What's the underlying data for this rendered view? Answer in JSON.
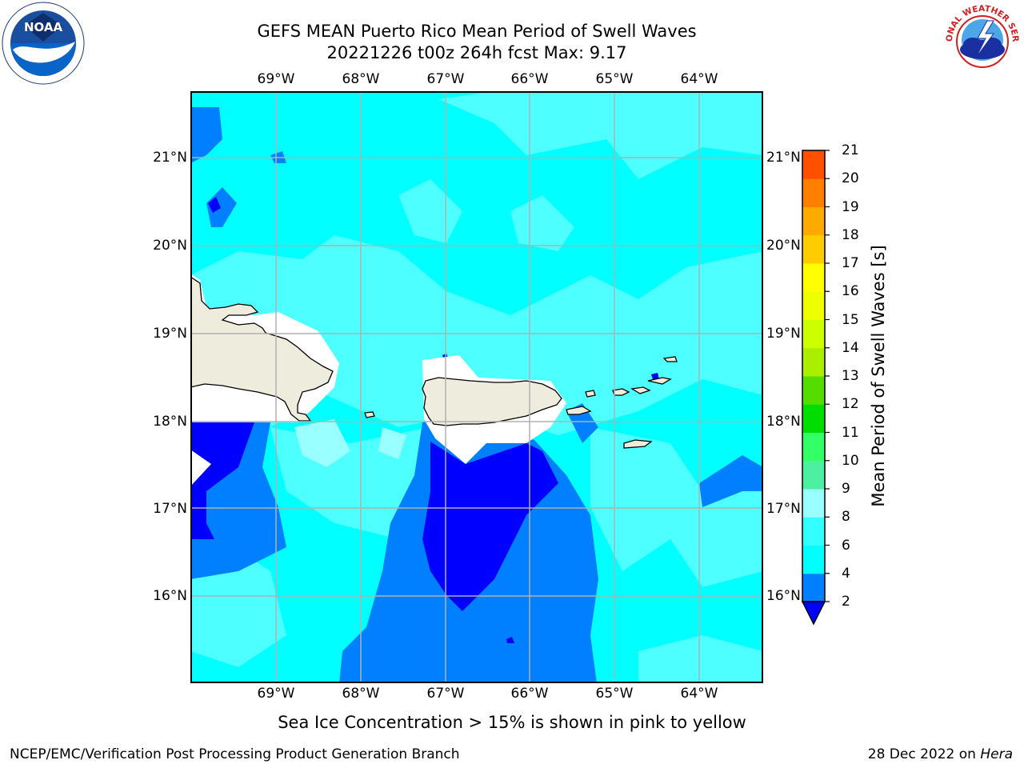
{
  "title": {
    "line1": "GEFS MEAN Puerto Rico Mean Period of Swell Waves",
    "line2": "20221226 t00z 264h fcst   Max: 9.17"
  },
  "map": {
    "lon_labels": [
      "69°W",
      "68°W",
      "67°W",
      "66°W",
      "65°W",
      "64°W"
    ],
    "lat_labels": [
      "21°N",
      "20°N",
      "19°N",
      "18°N",
      "17°N",
      "16°N"
    ],
    "land_color": "#eeecdc",
    "grid_color": "#b0b0b0"
  },
  "colorbar": {
    "label": "Mean Period of Swell Waves [s]",
    "ticks": [
      "2",
      "4",
      "6",
      "8",
      "9",
      "10",
      "11",
      "12",
      "13",
      "14",
      "15",
      "16",
      "17",
      "18",
      "19",
      "20",
      "21"
    ],
    "colors": [
      "#0080ff",
      "#00ffff",
      "#33ffff",
      "#99ffff",
      "#4df0a0",
      "#33ff66",
      "#00dd00",
      "#55dd00",
      "#aaee00",
      "#ccff00",
      "#eeff00",
      "#ffff00",
      "#ffcc00",
      "#ffaa00",
      "#ff8000",
      "#ff5000",
      "#ff2000",
      "#ff0000"
    ],
    "under_color": "#0000ff"
  },
  "legend_colors": {
    "deep_blue": "#0000ff",
    "blue": "#0080ff",
    "cyan": "#00ffff",
    "light_cyan": "#4dffff",
    "pale_cyan": "#99ffff"
  },
  "note": "Sea Ice Concentration > 15% is shown in pink to yellow",
  "footer": {
    "left": "NCEP/EMC/Verification Post Processing Product Generation Branch",
    "right_prefix": "28 Dec 2022 on ",
    "right_host": "Hera"
  },
  "logos": {
    "noaa_text": "NOAA",
    "nws_text": "NATIONAL WEATHER SERVICE"
  }
}
